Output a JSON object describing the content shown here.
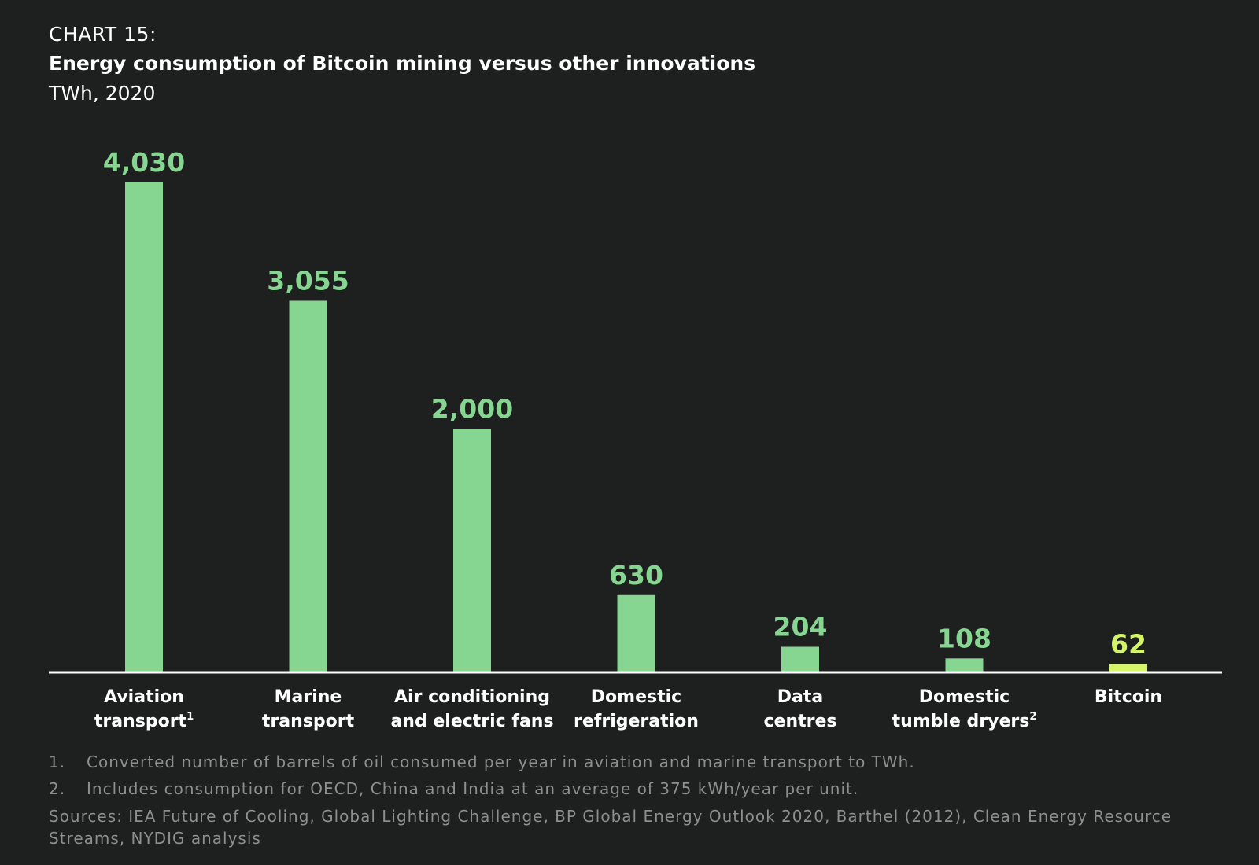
{
  "header": {
    "kicker": "CHART 15:",
    "title": "Energy consumption of Bitcoin mining versus other innovations",
    "subtitle": "TWh, 2020"
  },
  "colors": {
    "background": "#1e1f1f",
    "bar": "#86d692",
    "highlight_bar": "#d4f56a",
    "axis": "#ffffff",
    "text": "#ffffff",
    "footnote": "#8d8f8f"
  },
  "chart_data": {
    "type": "bar",
    "categories": [
      [
        "Aviation",
        "transport"
      ],
      [
        "Marine",
        "transport"
      ],
      [
        "Air conditioning",
        "and electric fans"
      ],
      [
        "Domestic",
        "refrigeration"
      ],
      [
        "Data",
        "centres"
      ],
      [
        "Domestic",
        "tumble dryers"
      ],
      [
        "Bitcoin"
      ]
    ],
    "category_superscripts": [
      "1",
      "",
      "",
      "",
      "",
      "2",
      ""
    ],
    "values": [
      4030,
      3055,
      2000,
      630,
      204,
      108,
      62
    ],
    "value_labels": [
      "4,030",
      "3,055",
      "2,000",
      "630",
      "204",
      "108",
      "62"
    ],
    "highlight_index": 6,
    "ylim": [
      0,
      4030
    ],
    "grid": false,
    "legend": "none"
  },
  "footnotes": [
    {
      "num": "1.",
      "text": "Converted number of barrels of oil consumed per year in aviation and marine transport to TWh."
    },
    {
      "num": "2.",
      "text": "Includes consumption for OECD, China and India at an average of 375 kWh/year per unit."
    }
  ],
  "sources": "Sources: IEA Future of Cooling, Global Lighting Challenge, BP Global Energy Outlook 2020, Barthel (2012), Clean Energy Resource Streams, NYDIG analysis"
}
